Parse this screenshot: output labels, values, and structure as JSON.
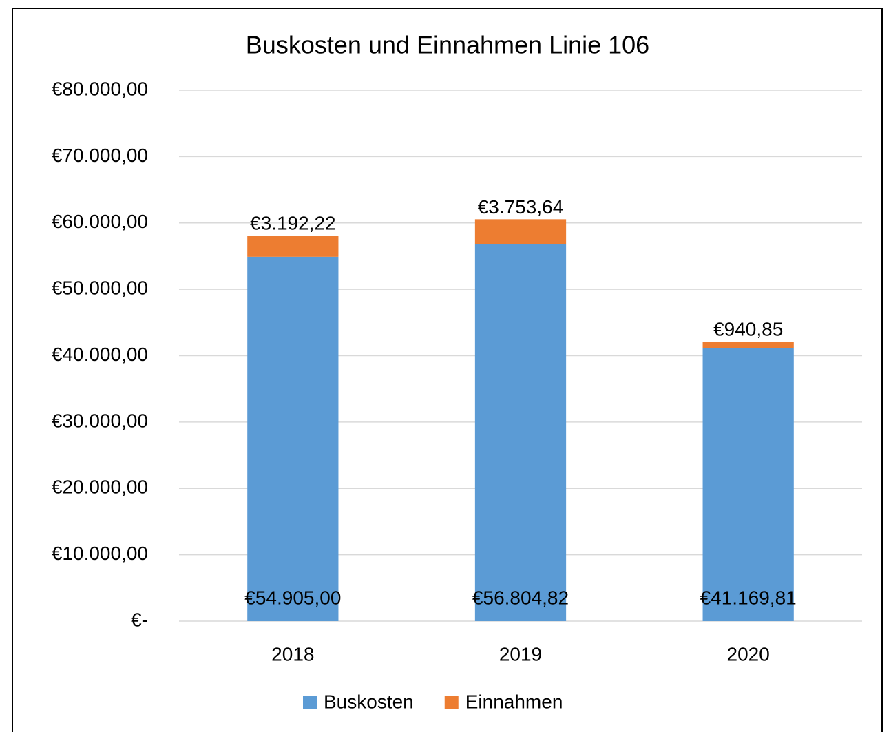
{
  "chart_data": {
    "type": "bar",
    "stacked": true,
    "title": "Buskosten und Einnahmen Linie 106",
    "categories": [
      "2018",
      "2019",
      "2020"
    ],
    "series": [
      {
        "name": "Buskosten",
        "color": "#5b9bd5",
        "values": [
          54905.0,
          56804.82,
          41169.81
        ],
        "value_labels": [
          "€54.905,00",
          "€56.804,82",
          "€41.169,81"
        ]
      },
      {
        "name": "Einnahmen",
        "color": "#ed7d31",
        "values": [
          3192.22,
          3753.64,
          940.85
        ],
        "value_labels": [
          "€3.192,22",
          "€3.753,64",
          "€940,85"
        ]
      }
    ],
    "ylim": [
      0,
      80000
    ],
    "yticks": [
      {
        "value": 0,
        "label": "€-"
      },
      {
        "value": 10000,
        "label": "€10.000,00"
      },
      {
        "value": 20000,
        "label": "€20.000,00"
      },
      {
        "value": 30000,
        "label": "€30.000,00"
      },
      {
        "value": 40000,
        "label": "€40.000,00"
      },
      {
        "value": 50000,
        "label": "€50.000,00"
      },
      {
        "value": 60000,
        "label": "€60.000,00"
      },
      {
        "value": 70000,
        "label": "€70.000,00"
      },
      {
        "value": 80000,
        "label": "€80.000,00"
      }
    ],
    "grid": true,
    "legend": "bottom"
  }
}
